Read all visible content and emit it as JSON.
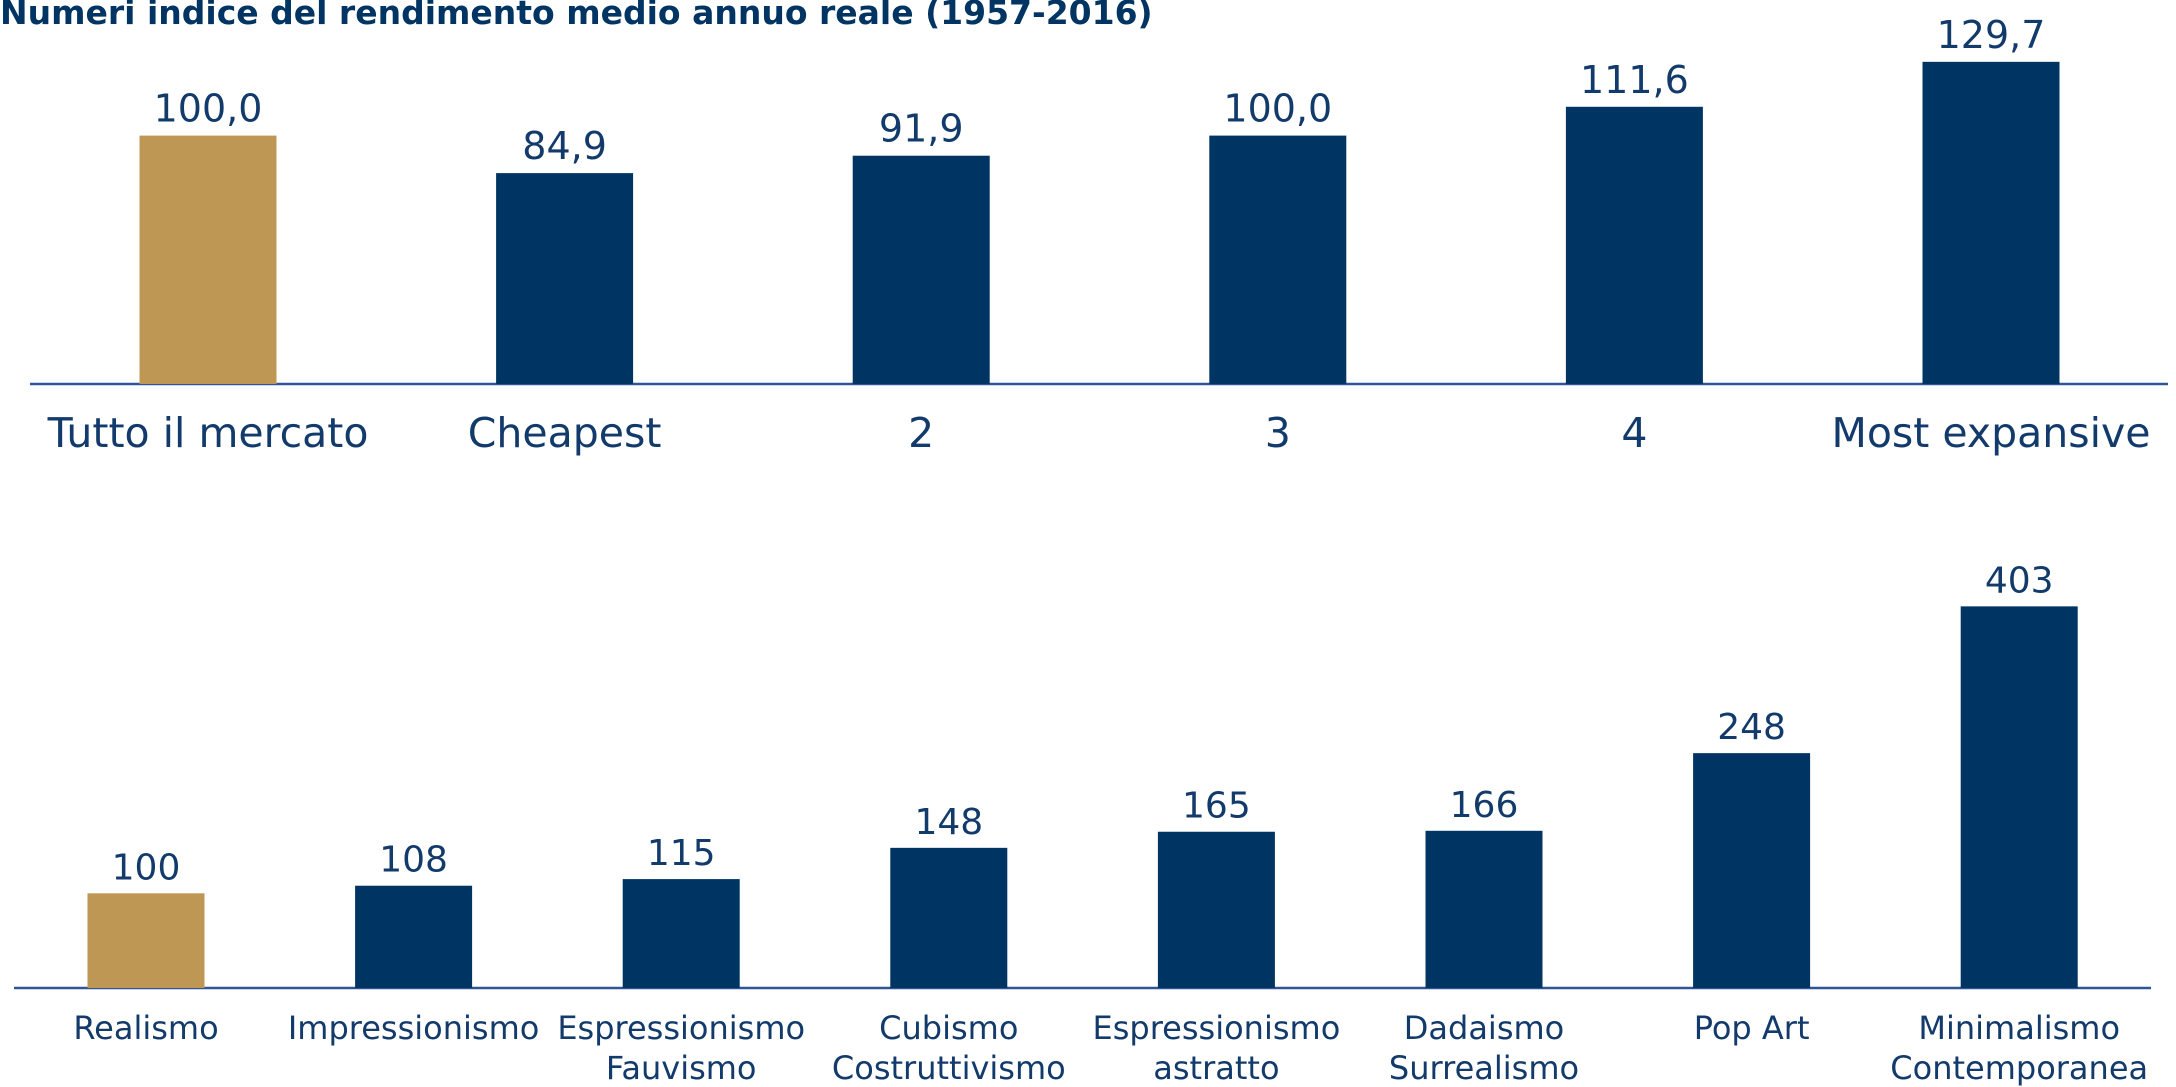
{
  "chart_data": [
    {
      "type": "bar",
      "title": "Numeri indice del rendimento medio annuo reale (1957-2016)",
      "categories": [
        "Tutto il mercato",
        "Cheapest",
        "2",
        "3",
        "4",
        "Most expansive"
      ],
      "values": [
        100.0,
        84.9,
        91.9,
        100.0,
        111.6,
        129.7
      ],
      "value_labels": [
        "100,0",
        "84,9",
        "91,9",
        "100,0",
        "111,6",
        "129,7"
      ],
      "colors": [
        "#bf9755",
        "#003462",
        "#003462",
        "#003462",
        "#003462",
        "#003462"
      ]
    },
    {
      "type": "bar",
      "categories": [
        "Realismo",
        "Impressionismo",
        "Espressionismo\nFauvismo",
        "Cubismo\nCostruttivismo",
        "Espressionismo\nastratto",
        "Dadaismo\nSurrealismo",
        "Pop Art",
        "Minimalismo\nContemporanea"
      ],
      "values": [
        100,
        108,
        115,
        148,
        165,
        166,
        248,
        403
      ],
      "colors": [
        "#bf9755",
        "#003462",
        "#003462",
        "#003462",
        "#003462",
        "#003462",
        "#003462",
        "#003462"
      ]
    }
  ]
}
